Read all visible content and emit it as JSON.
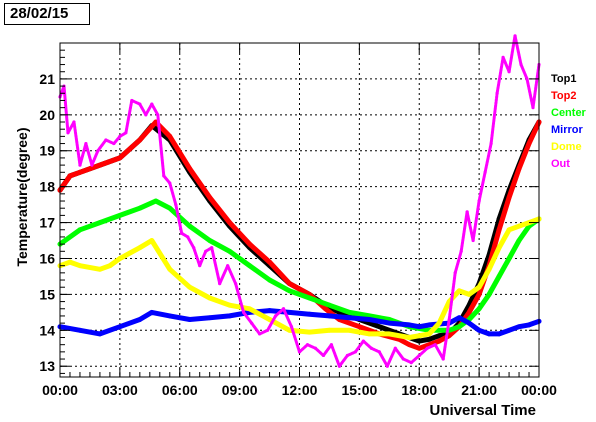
{
  "date_label": "28/02/15",
  "chart_data": {
    "type": "line",
    "xlabel": "Universal Time",
    "ylabel": "Temperature(degree)",
    "xlim": [
      0,
      24
    ],
    "ylim": [
      12.7,
      22.0
    ],
    "grid": true,
    "legend_position": "right",
    "x_ticks": [
      0,
      3,
      6,
      9,
      12,
      15,
      18,
      21,
      24
    ],
    "x_tick_labels": [
      "00:00",
      "03:00",
      "06:00",
      "09:00",
      "12:00",
      "15:00",
      "18:00",
      "21:00",
      "00:00"
    ],
    "y_ticks": [
      13,
      14,
      15,
      16,
      17,
      18,
      19,
      20,
      21
    ],
    "y_tick_labels": [
      "13",
      "14",
      "15",
      "16",
      "17",
      "18",
      "19",
      "20",
      "21"
    ],
    "series": [
      {
        "name": "Top1",
        "color": "#000000",
        "x": [
          0,
          0.5,
          1,
          2,
          3,
          4,
          4.6,
          5.5,
          6.5,
          7.5,
          8.5,
          9.5,
          10.5,
          11.5,
          12.5,
          13.3,
          14,
          15,
          16,
          17,
          17.5,
          18,
          18.5,
          19,
          19.5,
          20,
          20.5,
          21,
          21.5,
          22,
          22.5,
          23,
          23.5,
          24
        ],
        "y": [
          17.9,
          18.3,
          18.4,
          18.6,
          18.8,
          19.3,
          19.7,
          19.3,
          18.4,
          17.6,
          16.9,
          16.3,
          15.8,
          15.3,
          15.0,
          14.7,
          14.5,
          14.3,
          14.1,
          13.9,
          13.8,
          13.7,
          13.75,
          13.85,
          13.9,
          14.2,
          14.7,
          15.3,
          16.1,
          17.1,
          17.9,
          18.6,
          19.3,
          19.8
        ]
      },
      {
        "name": "Top2",
        "color": "#ff0000",
        "x": [
          0,
          0.5,
          1,
          2,
          3,
          4,
          4.8,
          5.5,
          6.5,
          7.5,
          8.5,
          9.5,
          10.5,
          11.5,
          12.5,
          13.3,
          14,
          15,
          16,
          17,
          17.5,
          18,
          18.5,
          19,
          19.5,
          20,
          20.5,
          21,
          21.5,
          22,
          22.5,
          23,
          23.5,
          24
        ],
        "y": [
          17.9,
          18.3,
          18.4,
          18.6,
          18.8,
          19.3,
          19.8,
          19.4,
          18.5,
          17.7,
          17.0,
          16.4,
          15.9,
          15.3,
          15.0,
          14.6,
          14.3,
          14.1,
          13.9,
          13.75,
          13.6,
          13.5,
          13.6,
          13.7,
          13.85,
          14.1,
          14.5,
          15.0,
          15.8,
          16.8,
          17.7,
          18.5,
          19.2,
          19.8
        ]
      },
      {
        "name": "Center",
        "color": "#00ff00",
        "x": [
          0,
          1,
          2,
          3,
          4,
          4.8,
          5.5,
          6.5,
          7.5,
          8.5,
          9.5,
          10.5,
          11.5,
          12.5,
          13.5,
          14.5,
          15.5,
          16.5,
          17.5,
          18.5,
          19.5,
          20,
          20.5,
          21,
          21.5,
          22,
          22.5,
          23,
          23.5,
          24
        ],
        "y": [
          16.4,
          16.8,
          17.0,
          17.2,
          17.4,
          17.6,
          17.4,
          16.9,
          16.5,
          16.2,
          15.8,
          15.4,
          15.1,
          14.9,
          14.7,
          14.5,
          14.4,
          14.3,
          14.1,
          14.0,
          14.0,
          14.1,
          14.3,
          14.6,
          15.0,
          15.5,
          16.0,
          16.5,
          16.9,
          17.1
        ]
      },
      {
        "name": "Mirror",
        "color": "#0000ff",
        "x": [
          0,
          1,
          2,
          3,
          4,
          4.6,
          5.5,
          6.5,
          7.5,
          8.5,
          9.5,
          10.5,
          11.5,
          12.5,
          13.5,
          14.5,
          15.5,
          16.5,
          17.5,
          18,
          18.5,
          19.5,
          20,
          20.5,
          21,
          21.5,
          22,
          22.5,
          23,
          23.5,
          24
        ],
        "y": [
          14.1,
          14.0,
          13.9,
          14.1,
          14.3,
          14.5,
          14.4,
          14.3,
          14.35,
          14.4,
          14.5,
          14.55,
          14.5,
          14.45,
          14.4,
          14.35,
          14.3,
          14.2,
          14.15,
          14.1,
          14.15,
          14.2,
          14.35,
          14.2,
          14.0,
          13.9,
          13.9,
          14.0,
          14.1,
          14.15,
          14.25
        ]
      },
      {
        "name": "Dome",
        "color": "#ffff00",
        "x": [
          0,
          0.5,
          1,
          2,
          2.5,
          3,
          4,
          4.6,
          5.5,
          6.5,
          7.5,
          8.5,
          9.5,
          10.5,
          11.5,
          12.5,
          13.5,
          14.5,
          15.5,
          16.5,
          17.5,
          18.5,
          19,
          19.5,
          20,
          20.5,
          21,
          21.5,
          22,
          22.5,
          23,
          23.5,
          24
        ],
        "y": [
          15.8,
          15.9,
          15.8,
          15.7,
          15.8,
          16.0,
          16.3,
          16.5,
          15.7,
          15.2,
          14.9,
          14.7,
          14.6,
          14.3,
          14.0,
          13.95,
          14.0,
          14.0,
          13.9,
          13.9,
          13.8,
          13.9,
          14.2,
          14.8,
          15.1,
          15.0,
          15.2,
          15.7,
          16.3,
          16.8,
          16.9,
          17.0,
          17.1
        ]
      },
      {
        "name": "Out",
        "color": "#ff00ff",
        "x": [
          0,
          0.2,
          0.4,
          0.7,
          1,
          1.3,
          1.6,
          1.9,
          2.3,
          2.7,
          3,
          3.3,
          3.6,
          4,
          4.3,
          4.6,
          4.9,
          5.2,
          5.5,
          5.8,
          6.1,
          6.4,
          6.7,
          7,
          7.3,
          7.6,
          8,
          8.4,
          8.8,
          9.2,
          9.6,
          10,
          10.4,
          10.8,
          11.2,
          11.6,
          12,
          12.4,
          12.8,
          13.2,
          13.6,
          14,
          14.4,
          14.8,
          15.2,
          15.6,
          16,
          16.4,
          16.8,
          17.2,
          17.6,
          18,
          18.4,
          18.8,
          19.2,
          19.5,
          19.8,
          20.1,
          20.4,
          20.7,
          21,
          21.3,
          21.6,
          21.9,
          22.2,
          22.5,
          22.8,
          23.1,
          23.4,
          23.7,
          24
        ],
        "y": [
          20.5,
          20.8,
          19.5,
          19.8,
          18.6,
          19.2,
          18.6,
          19.0,
          19.3,
          19.2,
          19.4,
          19.5,
          20.4,
          20.3,
          20.0,
          20.3,
          20.0,
          18.3,
          18.1,
          17.5,
          16.7,
          16.6,
          16.3,
          15.8,
          16.2,
          16.3,
          15.3,
          15.8,
          15.3,
          14.5,
          14.2,
          13.9,
          14.0,
          14.4,
          14.6,
          14.1,
          13.4,
          13.6,
          13.5,
          13.3,
          13.6,
          13.0,
          13.3,
          13.4,
          13.7,
          13.5,
          13.4,
          13.0,
          13.5,
          13.2,
          13.1,
          13.3,
          13.5,
          13.6,
          13.2,
          14.3,
          15.6,
          16.2,
          17.3,
          16.5,
          17.6,
          18.4,
          19.2,
          20.6,
          21.6,
          21.2,
          22.2,
          21.4,
          21.0,
          20.2,
          21.4
        ]
      }
    ]
  }
}
